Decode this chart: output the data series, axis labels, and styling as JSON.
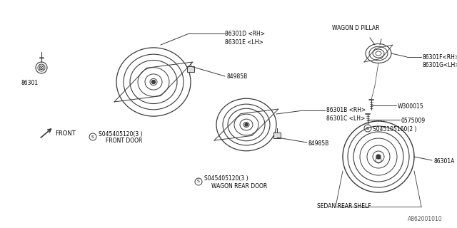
{
  "bg_color": "#ffffff",
  "line_color": "#3a3a3a",
  "text_color": "#000000",
  "fig_width": 6.4,
  "fig_height": 3.2,
  "dpi": 100,
  "footer": "A862001010",
  "parts": {
    "part_86301": "86301",
    "part_86301D": "86301D <RH>",
    "part_86301E": "86301E <LH>",
    "part_84985B_front": "84985B",
    "part_84985B_rear": "84985B",
    "part_86301B": "86301B <RH>",
    "part_86301C": "86301C <LH>",
    "screw_front": "S045405120(3 )",
    "label_front": "FRONT DOOR",
    "screw_rear": "S045405120(3 )",
    "label_rear": "WAGON REAR DOOR",
    "wagon_d_pillar_label": "WAGON D PILLAR",
    "part_86301F": "86301F<RH>",
    "part_86301G": "86301G<LH>",
    "part_W300015": "W300015",
    "part_S045105160": "S045105160(2 )",
    "part_0575009": "0575009",
    "part_86301A": "86301A",
    "sedan_label": "SEDAN REAR SHELF",
    "front_arrow_label": "FRONT"
  }
}
